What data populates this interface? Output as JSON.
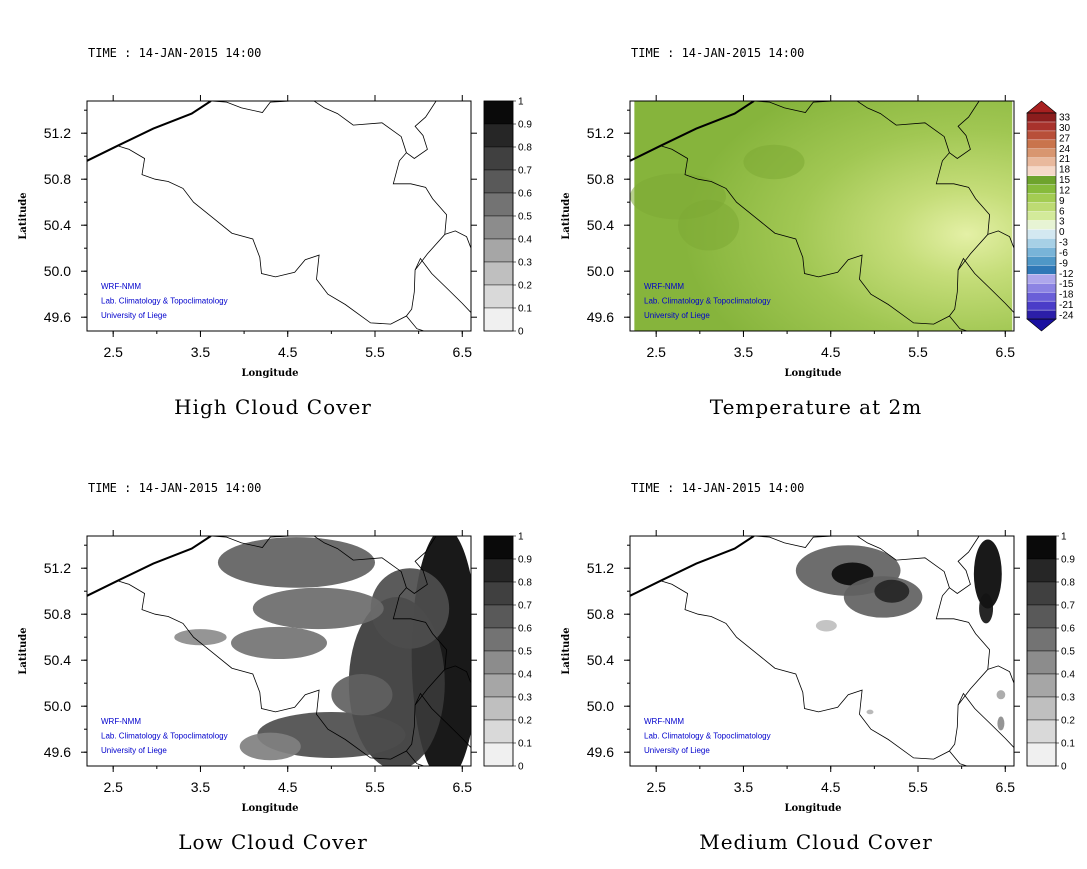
{
  "colors": {
    "credit_text": "#0000cc",
    "frame": "#000000",
    "cloud_scale": [
      "#ffffff",
      "#f0f0f0",
      "#d9d9d9",
      "#bfbfbf",
      "#a6a6a6",
      "#8c8c8c",
      "#737373",
      "#595959",
      "#404040",
      "#262626",
      "#0a0a0a"
    ],
    "temperature_scale": [
      "#2b1ea8",
      "#4a3dc8",
      "#6a5fd8",
      "#8c84e3",
      "#ada7ec",
      "#2f78b7",
      "#4f97c7",
      "#79b4d8",
      "#a7d0e6",
      "#d3e8f1",
      "#e7f4d4",
      "#d3ea9a",
      "#bddb73",
      "#a3cc52",
      "#87bb3b",
      "#6ea32c",
      "#f6d9c8",
      "#e9b99d",
      "#d89670",
      "#c9744c",
      "#b84f3a",
      "#a8322c",
      "#8b1d1d"
    ]
  },
  "chart_data": [
    {
      "type": "heatmap",
      "title": "High Cloud Cover",
      "time": "TIME : 14-JAN-2015 14:00",
      "xlabel": "Longitude",
      "ylabel": "Latitude",
      "xlim": [
        2.2,
        6.6
      ],
      "ylim": [
        49.48,
        51.48
      ],
      "xticks": [
        "2.5",
        "3.5",
        "4.5",
        "5.5",
        "6.5"
      ],
      "yticks": [
        "51.2",
        "50.8",
        "50.4",
        "50.0",
        "49.6"
      ],
      "colorbar": [
        "1",
        "0.9",
        "0.8",
        "0.7",
        "0.6",
        "0.5",
        "0.4",
        "0.3",
        "0.2",
        "0.1",
        "0"
      ],
      "credits": [
        "WRF-NMM",
        "Lab. Climatology & Topoclimatology",
        "University of Liege"
      ],
      "field": "none"
    },
    {
      "type": "heatmap",
      "title": "Temperature at 2m",
      "time": "TIME : 14-JAN-2015 14:00",
      "xlabel": "Longitude",
      "ylabel": "Latitude",
      "xlim": [
        2.2,
        6.6
      ],
      "ylim": [
        49.48,
        51.48
      ],
      "xticks": [
        "2.5",
        "3.5",
        "4.5",
        "5.5",
        "6.5"
      ],
      "yticks": [
        "51.2",
        "50.8",
        "50.4",
        "50.0",
        "49.6"
      ],
      "colorbar": [
        "33",
        "30",
        "27",
        "24",
        "21",
        "18",
        "15",
        "12",
        "9",
        "6",
        "3",
        "0",
        "-3",
        "-6",
        "-9",
        "-12",
        "-15",
        "-18",
        "-21",
        "-24"
      ],
      "credits": [
        "WRF-NMM",
        "Lab. Climatology & Topoclimatology",
        "University of Liege"
      ],
      "field": "temperature"
    },
    {
      "type": "heatmap",
      "title": "Low Cloud Cover",
      "time": "TIME : 14-JAN-2015 14:00",
      "xlabel": "Longitude",
      "ylabel": "Latitude",
      "xlim": [
        2.2,
        6.6
      ],
      "ylim": [
        49.48,
        51.48
      ],
      "xticks": [
        "2.5",
        "3.5",
        "4.5",
        "5.5",
        "6.5"
      ],
      "yticks": [
        "51.2",
        "50.8",
        "50.4",
        "50.0",
        "49.6"
      ],
      "colorbar": [
        "1",
        "0.9",
        "0.8",
        "0.7",
        "0.6",
        "0.5",
        "0.4",
        "0.3",
        "0.2",
        "0.1",
        "0"
      ],
      "credits": [
        "WRF-NMM",
        "Lab. Climatology & Topoclimatology",
        "University of Liege"
      ],
      "field": "low"
    },
    {
      "type": "heatmap",
      "title": "Medium Cloud Cover",
      "time": "TIME : 14-JAN-2015 14:00",
      "xlabel": "Longitude",
      "ylabel": "Latitude",
      "xlim": [
        2.2,
        6.6
      ],
      "ylim": [
        49.48,
        51.48
      ],
      "xticks": [
        "2.5",
        "3.5",
        "4.5",
        "5.5",
        "6.5"
      ],
      "yticks": [
        "51.2",
        "50.8",
        "50.4",
        "50.0",
        "49.6"
      ],
      "colorbar": [
        "1",
        "0.9",
        "0.8",
        "0.7",
        "0.6",
        "0.5",
        "0.4",
        "0.3",
        "0.2",
        "0.1",
        "0"
      ],
      "credits": [
        "WRF-NMM",
        "Lab. Climatology & Topoclimatology",
        "University of Liege"
      ],
      "field": "medium"
    }
  ]
}
